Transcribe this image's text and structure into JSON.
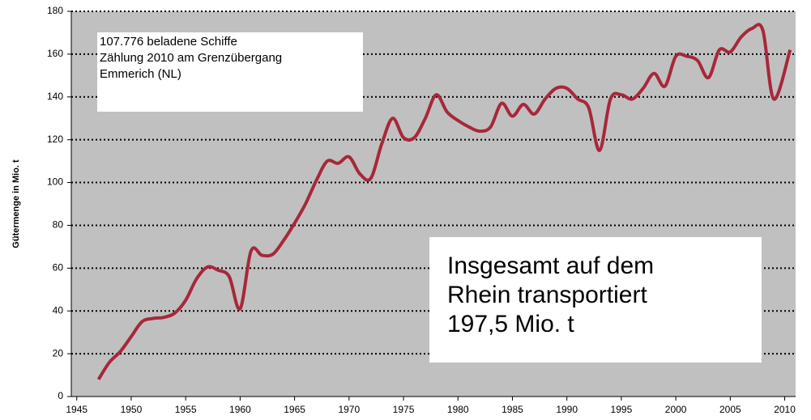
{
  "chart_data": {
    "type": "line",
    "y_label": "Gütermenge in Mio. t",
    "annotations": [
      {
        "lines": [
          "107.776 beladene Schiffe",
          "Zählung 2010 am Grenzübergang",
          "Emmerich (NL)"
        ]
      },
      {
        "lines": [
          "Insgesamt auf dem",
          "Rhein transportiert",
          "197,5 Mio. t"
        ]
      }
    ],
    "x": [
      1947,
      1948,
      1949,
      1950,
      1951,
      1952,
      1953,
      1954,
      1955,
      1956,
      1957,
      1958,
      1959,
      1960,
      1961,
      1962,
      1963,
      1964,
      1965,
      1966,
      1967,
      1968,
      1969,
      1970,
      1971,
      1972,
      1973,
      1974,
      1975,
      1976,
      1977,
      1978,
      1979,
      1980,
      1981,
      1982,
      1983,
      1984,
      1985,
      1986,
      1987,
      1988,
      1989,
      1990,
      1991,
      1992,
      1993,
      1994,
      1995,
      1996,
      1997,
      1998,
      1999,
      2000,
      2001,
      2002,
      2003,
      2004,
      2005,
      2006,
      2007,
      2008,
      2009,
      2010.5
    ],
    "series": [
      {
        "color": "#a8273a",
        "values": [
          8,
          16,
          21,
          28,
          35,
          36.5,
          37,
          39,
          45,
          55,
          60.5,
          59,
          56,
          41,
          68,
          66,
          66.5,
          73,
          81,
          90,
          101,
          110,
          109,
          112,
          104,
          102,
          118,
          130,
          121,
          121,
          130,
          141,
          133,
          129,
          126,
          124,
          126,
          137,
          131,
          136.5,
          132,
          139,
          144,
          144,
          139,
          135,
          115,
          139,
          141,
          139,
          144,
          151,
          145,
          159,
          159,
          157,
          149,
          162,
          161,
          168,
          172,
          171,
          139,
          162
        ]
      }
    ],
    "xlim": [
      1944.5,
      2011
    ],
    "ylim": [
      0,
      180
    ],
    "xticks": [
      1945,
      1950,
      1955,
      1960,
      1965,
      1970,
      1975,
      1980,
      1985,
      1990,
      1995,
      2000,
      2005,
      2010
    ],
    "yticks": [
      0,
      20,
      40,
      60,
      80,
      100,
      120,
      140,
      160,
      180
    ],
    "grid": true
  }
}
